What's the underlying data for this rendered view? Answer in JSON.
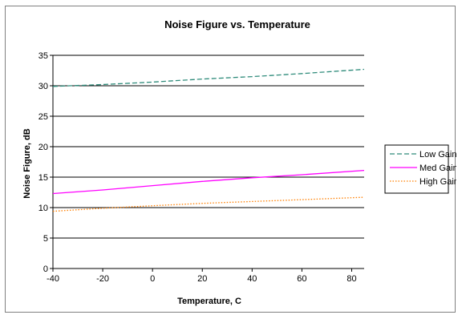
{
  "chart_data": {
    "type": "line",
    "title": "Noise Figure vs. Temperature",
    "xlabel": "Temperature, C",
    "ylabel": "Noise Figure, dB",
    "xlim": [
      -40,
      85
    ],
    "ylim": [
      0,
      35
    ],
    "x_ticks": [
      -40,
      -20,
      0,
      20,
      40,
      60,
      80
    ],
    "y_ticks": [
      0,
      5,
      10,
      15,
      20,
      25,
      30,
      35
    ],
    "grid": "horizontal major",
    "legend_position": "right",
    "x": [
      -40,
      -20,
      0,
      20,
      40,
      60,
      85
    ],
    "series": [
      {
        "name": "Low Gain",
        "color": "#2e8b7a",
        "dash": "dashed",
        "values": [
          29.9,
          30.2,
          30.6,
          31.1,
          31.5,
          32.0,
          32.7
        ]
      },
      {
        "name": "Med Gain",
        "color": "#ff00ff",
        "dash": "solid",
        "values": [
          12.3,
          12.9,
          13.6,
          14.3,
          14.9,
          15.4,
          16.1
        ]
      },
      {
        "name": "High Gain",
        "color": "#ff7f00",
        "dash": "dotted",
        "values": [
          9.4,
          9.9,
          10.3,
          10.7,
          11.0,
          11.3,
          11.7
        ]
      }
    ]
  }
}
